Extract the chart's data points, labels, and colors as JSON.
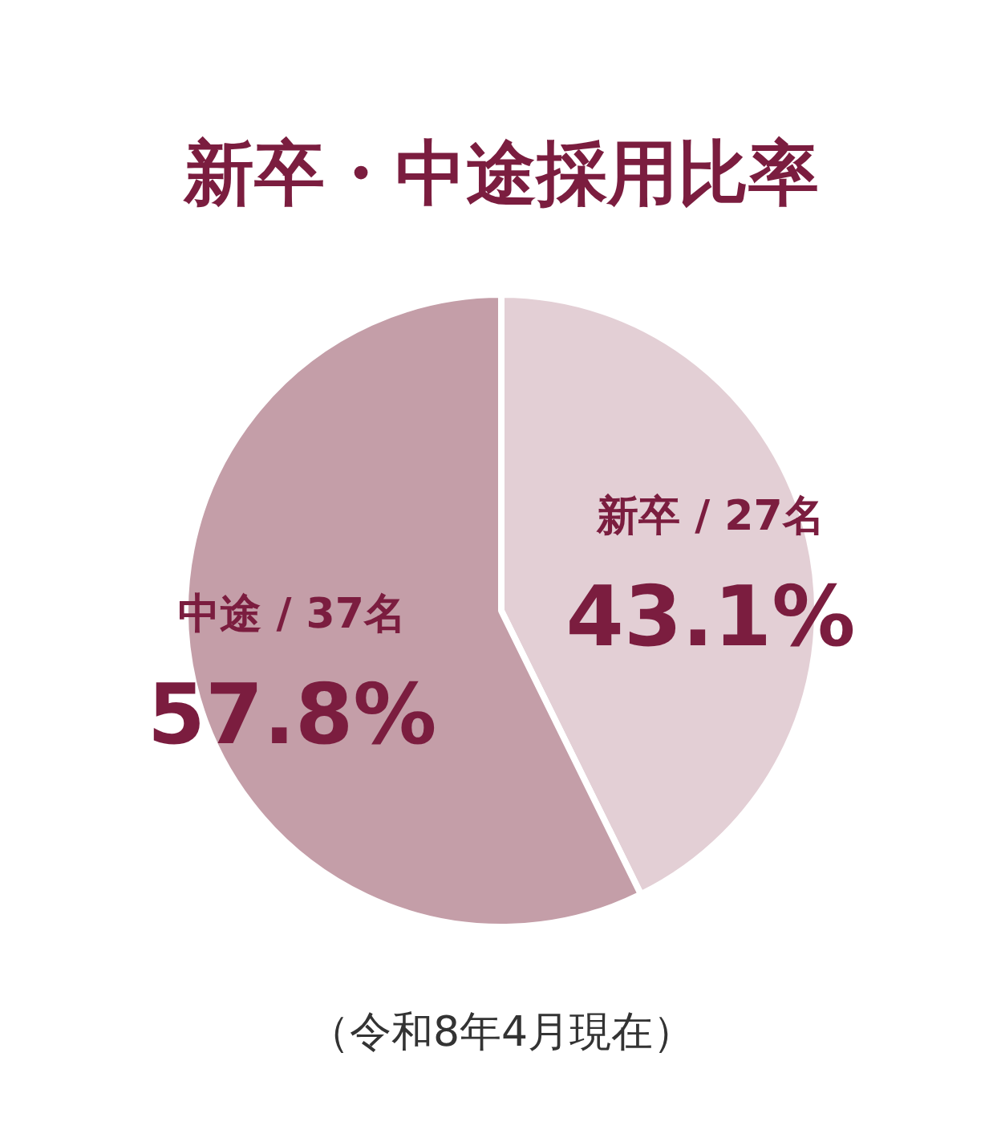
{
  "chart_data": {
    "type": "pie",
    "title": "新卒・中途採用比率",
    "categories": [
      "新卒 / 27名",
      "中途 / 37名"
    ],
    "values": [
      43.1,
      57.8
    ],
    "value_labels": [
      "43.1%",
      "57.8%"
    ],
    "colors": [
      "#e3cfd5",
      "#c49ea8"
    ],
    "annotations": [
      "（令和8年4月現在）"
    ]
  }
}
